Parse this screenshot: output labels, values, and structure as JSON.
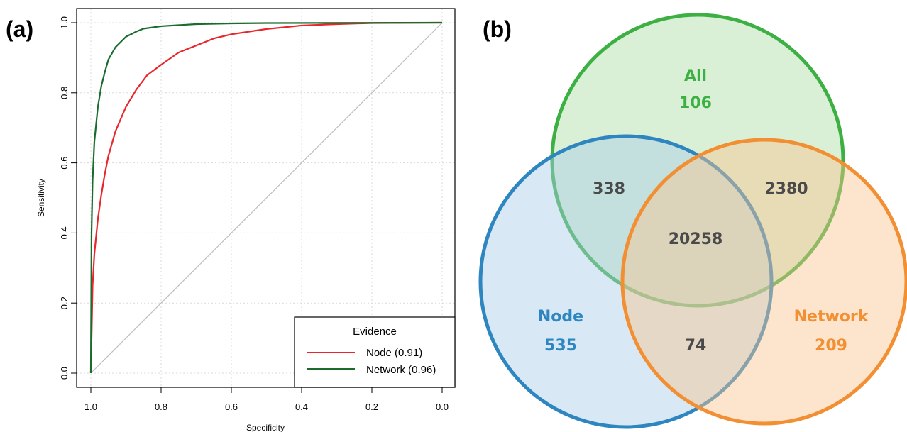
{
  "chart_data": [
    {
      "type": "line",
      "panel_label": "(a)",
      "xlabel": "Specificity",
      "ylabel": "Sensitivity",
      "xlim": [
        1.0,
        0.0
      ],
      "ylim": [
        0.0,
        1.0
      ],
      "x_axis_reversed": true,
      "x_ticks": [
        "1.0",
        "0.8",
        "0.6",
        "0.4",
        "0.2",
        "0.0"
      ],
      "y_ticks": [
        "0.0",
        "0.2",
        "0.4",
        "0.6",
        "0.8",
        "1.0"
      ],
      "grid": true,
      "legend": {
        "title": "Evidence",
        "placement": "bottom-right",
        "entries": [
          "Node (0.91)",
          "Network (0.96)"
        ]
      },
      "reference_line": {
        "from": [
          1.0,
          0.0
        ],
        "to": [
          0.0,
          1.0
        ],
        "color": "#bfbfbf"
      },
      "series": [
        {
          "name": "Node (0.91)",
          "color": "#e8262b",
          "points": [
            [
              1.0,
              0.0
            ],
            [
              0.995,
              0.25
            ],
            [
              0.99,
              0.34
            ],
            [
              0.98,
              0.44
            ],
            [
              0.97,
              0.51
            ],
            [
              0.96,
              0.57
            ],
            [
              0.95,
              0.62
            ],
            [
              0.93,
              0.69
            ],
            [
              0.9,
              0.76
            ],
            [
              0.87,
              0.81
            ],
            [
              0.84,
              0.85
            ],
            [
              0.8,
              0.88
            ],
            [
              0.75,
              0.915
            ],
            [
              0.7,
              0.935
            ],
            [
              0.65,
              0.955
            ],
            [
              0.6,
              0.967
            ],
            [
              0.5,
              0.982
            ],
            [
              0.4,
              0.992
            ],
            [
              0.3,
              0.996
            ],
            [
              0.2,
              0.999
            ],
            [
              0.0,
              1.0
            ]
          ]
        },
        {
          "name": "Network (0.96)",
          "color": "#1a6b2e",
          "points": [
            [
              1.0,
              0.0
            ],
            [
              0.998,
              0.4
            ],
            [
              0.995,
              0.55
            ],
            [
              0.99,
              0.66
            ],
            [
              0.98,
              0.76
            ],
            [
              0.97,
              0.82
            ],
            [
              0.96,
              0.86
            ],
            [
              0.95,
              0.895
            ],
            [
              0.93,
              0.93
            ],
            [
              0.9,
              0.96
            ],
            [
              0.87,
              0.975
            ],
            [
              0.85,
              0.983
            ],
            [
              0.8,
              0.99
            ],
            [
              0.7,
              0.996
            ],
            [
              0.6,
              0.998
            ],
            [
              0.5,
              0.999
            ],
            [
              0.0,
              1.0
            ]
          ]
        }
      ]
    },
    {
      "type": "venn",
      "panel_label": "(b)",
      "sets": [
        {
          "key": "all",
          "label": "All",
          "count": "106",
          "color": "#3db043",
          "fill": "#b9e2b4"
        },
        {
          "key": "node",
          "label": "Node",
          "count": "535",
          "color": "#2e86c1",
          "fill": "#a9cbe8"
        },
        {
          "key": "network",
          "label": "Network",
          "count": "209",
          "color": "#f38f33",
          "fill": "#f9c58f"
        }
      ],
      "intersections": {
        "all_node": "338",
        "all_network": "2380",
        "node_network": "74",
        "all_node_network": "20258"
      },
      "intersection_text_color": "#4a4a4a"
    }
  ]
}
